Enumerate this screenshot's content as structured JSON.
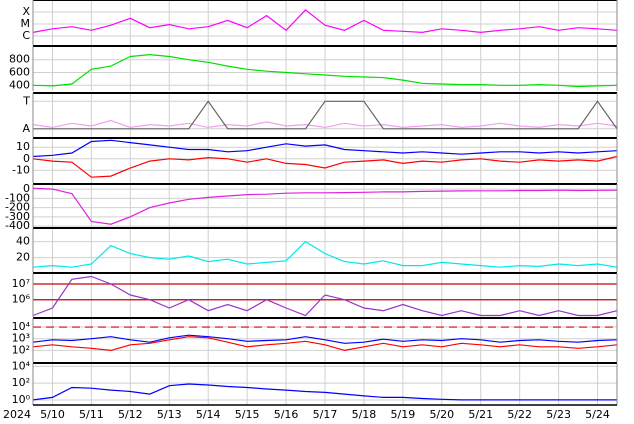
{
  "chart_data": [
    {
      "type": "line",
      "log": true,
      "ylim": [
        1.8e-07,
        0.001
      ],
      "yticks": [
        {
          "value": 0.0001,
          "label": "X"
        },
        {
          "value": 1e-05,
          "label": "M"
        },
        {
          "value": 1e-06,
          "label": "C"
        }
      ],
      "series": [
        {
          "color": "#ff00ff",
          "values": [
            2e-06,
            4e-06,
            6e-06,
            3e-06,
            8e-06,
            3e-05,
            5e-06,
            9e-06,
            4e-06,
            6e-06,
            2e-05,
            5e-06,
            5e-05,
            3e-06,
            0.00015,
            8e-06,
            3e-06,
            2e-05,
            3e-06,
            2.5e-06,
            2e-06,
            4e-06,
            3e-06,
            2e-06,
            3e-06,
            4e-06,
            6e-06,
            3e-06,
            5e-06,
            4e-06,
            3e-06
          ]
        }
      ]
    },
    {
      "type": "line",
      "ylim": [
        310,
        1015
      ],
      "yticks": [
        400,
        600,
        800
      ],
      "series": [
        {
          "color": "#00e000",
          "values": [
            400,
            390,
            420,
            650,
            700,
            850,
            880,
            850,
            800,
            760,
            700,
            650,
            620,
            600,
            580,
            560,
            540,
            530,
            520,
            480,
            430,
            420,
            410,
            410,
            400,
            400,
            410,
            400,
            380,
            390,
            400
          ]
        }
      ]
    },
    {
      "type": "line",
      "ylim": [
        -1.6,
        1.6
      ],
      "yticks": [
        {
          "value": 1,
          "label": "T"
        },
        {
          "value": -1,
          "label": "A"
        }
      ],
      "series": [
        {
          "color": "#f0a0f0",
          "values": [
            -0.7,
            -0.9,
            -0.6,
            -0.8,
            -0.4,
            -0.9,
            -0.7,
            -0.8,
            -0.6,
            -0.9,
            -0.7,
            -0.8,
            -0.5,
            -0.8,
            -0.7,
            -0.9,
            -0.6,
            -0.8,
            -0.7,
            -0.9,
            -0.8,
            -0.7,
            -0.9,
            -0.8,
            -0.6,
            -0.8,
            -0.9,
            -0.7,
            -0.8,
            -0.6,
            -0.8
          ]
        },
        {
          "color": "#666666",
          "values": [
            -1,
            -1,
            -1,
            -1,
            -1,
            -1,
            -1,
            -1,
            -1,
            1,
            -1,
            -1,
            -1,
            -1,
            -1,
            1,
            1,
            1,
            -1,
            -1,
            -1,
            -1,
            -1,
            -1,
            -1,
            -1,
            -1,
            -1,
            -1,
            1,
            -1
          ]
        }
      ]
    },
    {
      "type": "line",
      "ylim": [
        -21,
        18
      ],
      "yticks": [
        10,
        0,
        -10
      ],
      "series": [
        {
          "color": "#0000ff",
          "values": [
            2,
            3,
            5,
            15,
            16,
            14,
            12,
            10,
            8,
            8,
            6,
            7,
            10,
            13,
            11,
            12,
            8,
            7,
            6,
            5,
            6,
            5,
            4,
            5,
            6,
            6,
            5,
            6,
            5,
            6,
            7
          ]
        },
        {
          "color": "#ff0000",
          "values": [
            0,
            -2,
            -3,
            -16,
            -15,
            -8,
            -2,
            0,
            -1,
            1,
            0,
            -3,
            0,
            -4,
            -5,
            -8,
            -3,
            -2,
            -1,
            -4,
            -2,
            -3,
            -1,
            0,
            -2,
            -3,
            -1,
            -2,
            -1,
            -2,
            2
          ]
        }
      ]
    },
    {
      "type": "line",
      "ylim": [
        -410,
        55
      ],
      "yticks": [
        0,
        -100,
        -200,
        -300,
        -400
      ],
      "series": [
        {
          "color": "#dd22dd",
          "values": [
            10,
            0,
            -50,
            -350,
            -380,
            -300,
            -200,
            -150,
            -110,
            -90,
            -75,
            -60,
            -55,
            -45,
            -40,
            -40,
            -38,
            -35,
            -30,
            -30,
            -25,
            -22,
            -20,
            -18,
            -18,
            -15,
            -15,
            -12,
            -15,
            -13,
            -12
          ]
        }
      ]
    },
    {
      "type": "line",
      "ylim": [
        2,
        57
      ],
      "yticks": [
        20,
        40
      ],
      "series": [
        {
          "color": "#00e8e8",
          "values": [
            8,
            10,
            8,
            12,
            35,
            25,
            20,
            18,
            22,
            15,
            18,
            12,
            14,
            16,
            40,
            25,
            15,
            12,
            16,
            10,
            10,
            14,
            12,
            10,
            8,
            10,
            9,
            12,
            10,
            12,
            8
          ]
        }
      ]
    },
    {
      "type": "line",
      "log": true,
      "ylim": [
        80000,
        50000000
      ],
      "yticks": [
        {
          "value": 10000000,
          "label": "10⁷"
        },
        {
          "value": 1000000,
          "label": "10⁶"
        }
      ],
      "thresholds": [
        10000000,
        1000000
      ],
      "threshold_color": "#cc0000",
      "series": [
        {
          "color": "#9933cc",
          "values": [
            100000,
            300000,
            20000000,
            30000000,
            10000000,
            2000000,
            1000000,
            300000,
            1000000,
            200000,
            500000,
            200000,
            1000000,
            300000,
            100000,
            2000000,
            1000000,
            300000,
            200000,
            500000,
            200000,
            100000,
            200000,
            100000,
            100000,
            200000,
            100000,
            200000,
            100000,
            100000,
            200000
          ]
        }
      ]
    },
    {
      "type": "line",
      "log": true,
      "ylim": [
        10,
        60000
      ],
      "yticks": [
        {
          "value": 10000,
          "label": "10⁴"
        },
        {
          "value": 1000,
          "label": "10³"
        },
        {
          "value": 100,
          "label": "10²"
        }
      ],
      "thresholds": [
        10000
      ],
      "threshold_color": "#dd0000",
      "threshold_dash": true,
      "series": [
        {
          "color": "#0000ff",
          "values": [
            500,
            800,
            700,
            1000,
            1500,
            800,
            500,
            1200,
            2000,
            1500,
            1000,
            600,
            700,
            800,
            1500,
            800,
            400,
            500,
            900,
            600,
            800,
            700,
            1000,
            800,
            500,
            700,
            800,
            600,
            500,
            700,
            800
          ]
        },
        {
          "color": "#ff0000",
          "values": [
            200,
            300,
            200,
            150,
            100,
            300,
            400,
            800,
            1500,
            1200,
            500,
            200,
            300,
            400,
            600,
            300,
            100,
            200,
            400,
            200,
            300,
            200,
            400,
            300,
            200,
            300,
            200,
            200,
            150,
            200,
            300
          ]
        }
      ]
    },
    {
      "type": "line",
      "log": true,
      "ylim": [
        0.25,
        25000
      ],
      "yticks": [
        {
          "value": 10000,
          "label": "10⁴"
        },
        {
          "value": 100,
          "label": "10²"
        },
        {
          "value": 1,
          "label": "10⁰"
        }
      ],
      "year_label": "2024",
      "xlim": [
        9.5,
        24.5
      ],
      "x": [
        9.5,
        10,
        10.5,
        11,
        11.5,
        12,
        12.5,
        13,
        13.5,
        14,
        14.5,
        15,
        15.5,
        16,
        16.5,
        17,
        17.5,
        18,
        18.5,
        19,
        19.5,
        20,
        20.5,
        21,
        21.5,
        22,
        22.5,
        23,
        23.5,
        24,
        24.5
      ],
      "xticks": [
        {
          "value": 10,
          "label": "5/10"
        },
        {
          "value": 11,
          "label": "5/11"
        },
        {
          "value": 12,
          "label": "5/12"
        },
        {
          "value": 13,
          "label": "5/13"
        },
        {
          "value": 14,
          "label": "5/14"
        },
        {
          "value": 15,
          "label": "5/15"
        },
        {
          "value": 16,
          "label": "5/16"
        },
        {
          "value": 17,
          "label": "5/17"
        },
        {
          "value": 18,
          "label": "5/18"
        },
        {
          "value": 19,
          "label": "5/19"
        },
        {
          "value": 20,
          "label": "5/20"
        },
        {
          "value": 21,
          "label": "5/21"
        },
        {
          "value": 22,
          "label": "5/22"
        },
        {
          "value": 23,
          "label": "5/23"
        },
        {
          "value": 24,
          "label": "5/24"
        }
      ],
      "series": [
        {
          "color": "#0000ff",
          "values": [
            1,
            2,
            30,
            25,
            15,
            10,
            5,
            50,
            80,
            60,
            40,
            30,
            20,
            15,
            10,
            8,
            5,
            3,
            2,
            2,
            1.5,
            1.2,
            1,
            1,
            1,
            1,
            1,
            1,
            1,
            1,
            1
          ]
        }
      ]
    }
  ]
}
